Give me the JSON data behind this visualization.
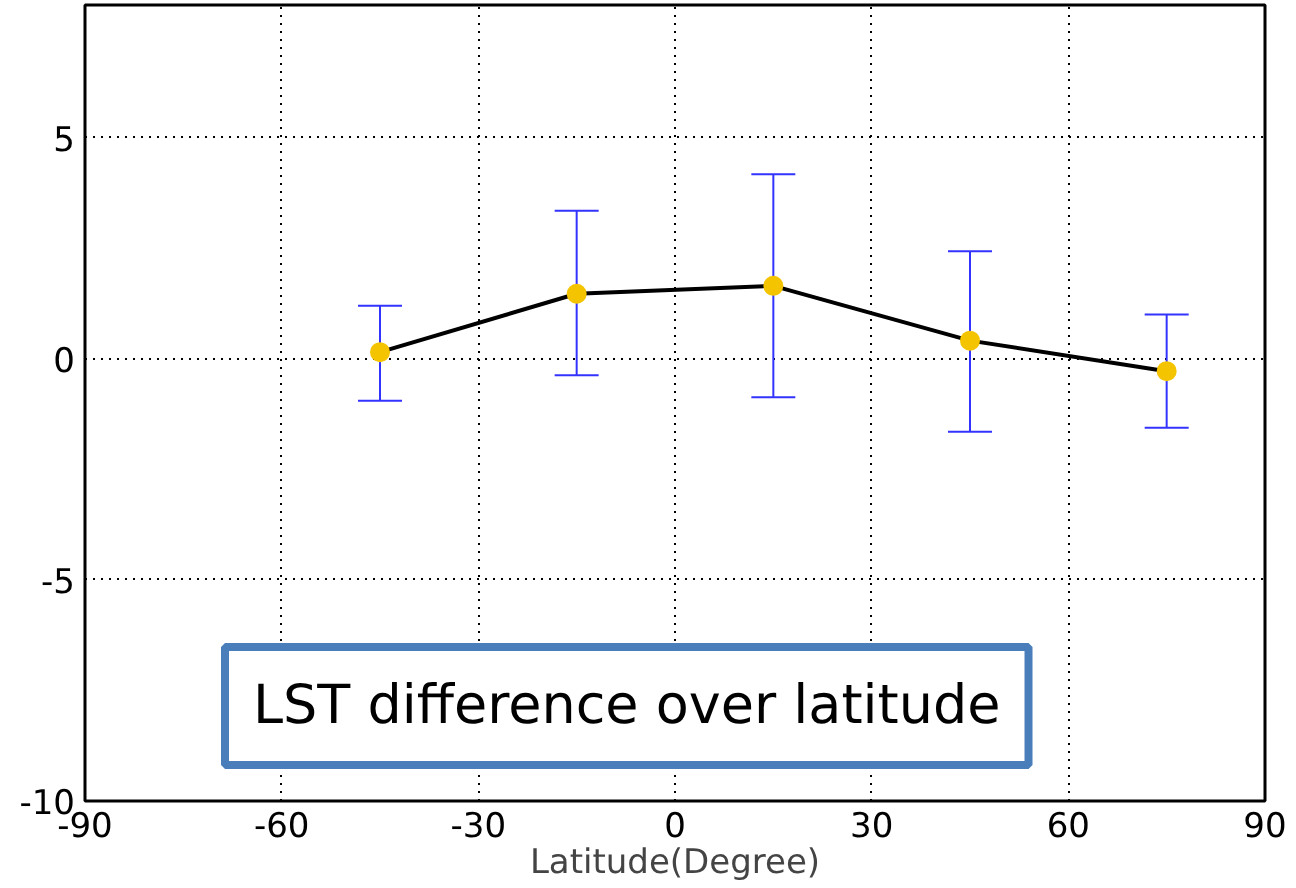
{
  "chart_data": {
    "type": "line",
    "xlabel": "Latitude(Degree)",
    "x": [
      -45,
      -15,
      15,
      45,
      75
    ],
    "series": [
      {
        "color": "#f5c400",
        "values": [
          0.15,
          1.47,
          1.65,
          0.41,
          -0.28
        ],
        "errors": [
          [
            -0.95,
            1.2
          ],
          [
            -0.37,
            3.35
          ],
          [
            -0.87,
            4.17
          ],
          [
            -1.65,
            2.43
          ],
          [
            -1.56,
            1.0
          ]
        ]
      }
    ],
    "marker": "circle",
    "line_style": "solid",
    "xlim": [
      -90,
      90
    ],
    "xticks": [
      -90,
      -60,
      -30,
      0,
      30,
      60,
      90
    ],
    "ylim": [
      -10,
      8
    ],
    "yticks": [
      -10,
      -5,
      0,
      5
    ],
    "grid": true,
    "annotations": [
      {
        "text": "LST difference over latitude"
      }
    ]
  }
}
